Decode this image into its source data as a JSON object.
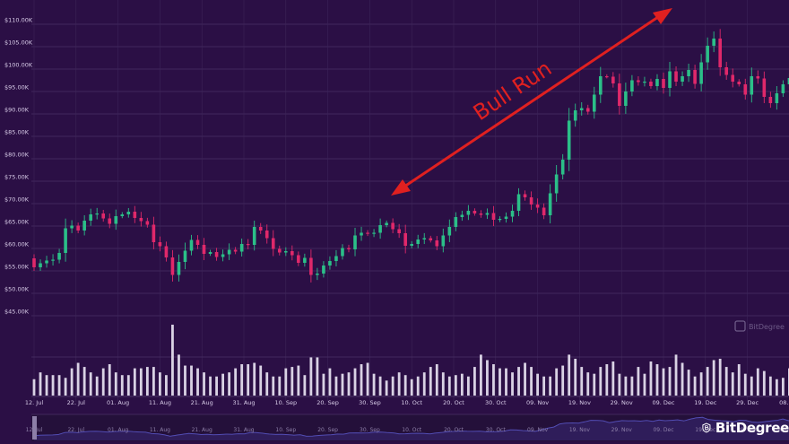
{
  "chart_data": {
    "type": "candlestick",
    "title": "",
    "annotation": "Bull Run",
    "ylim": [
      44000,
      112000
    ],
    "y_ticks": [
      "$45.00K",
      "$50.00K",
      "$55.00K",
      "$60.00K",
      "$65.00K",
      "$70.00K",
      "$75.00K",
      "$80.00K",
      "$85.00K",
      "$90.00K",
      "$95.00K",
      "$100.00K",
      "$105.00K",
      "$110.00K"
    ],
    "y_tick_values": [
      45000,
      50000,
      55000,
      60000,
      65000,
      70000,
      75000,
      80000,
      85000,
      90000,
      95000,
      100000,
      105000,
      110000
    ],
    "x_ticks": [
      "12. Jul",
      "22. Jul",
      "01. Aug",
      "11. Aug",
      "21. Aug",
      "31. Aug",
      "10. Sep",
      "20. Sep",
      "30. Sep",
      "10. Oct",
      "20. Oct",
      "30. Oct",
      "09. Nov",
      "19. Nov",
      "29. Nov",
      "09. Dec",
      "19. Dec",
      "29. Dec",
      "08. Jan"
    ],
    "x_tick_days": [
      0,
      10,
      20,
      30,
      40,
      50,
      60,
      70,
      80,
      90,
      100,
      110,
      120,
      130,
      140,
      150,
      160,
      170,
      180
    ],
    "start_date": "2024-07-10",
    "close": [
      55800,
      56700,
      57300,
      57500,
      59000,
      64500,
      65100,
      64000,
      66200,
      67600,
      67800,
      66700,
      65500,
      67200,
      67600,
      68200,
      66800,
      66100,
      65300,
      61400,
      60500,
      58000,
      54100,
      57000,
      59500,
      61900,
      60800,
      58800,
      59200,
      58100,
      58700,
      59700,
      59300,
      61000,
      60800,
      64800,
      64000,
      62300,
      59900,
      59100,
      59400,
      58500,
      56800,
      57900,
      54100,
      54400,
      56200,
      57200,
      58300,
      60100,
      59800,
      62900,
      63500,
      63300,
      63500,
      65200,
      65700,
      64300,
      63400,
      60600,
      61000,
      62000,
      62300,
      61800,
      60500,
      62900,
      64800,
      67000,
      67500,
      68400,
      67800,
      67500,
      67900,
      66400,
      66600,
      67100,
      68400,
      72100,
      71400,
      69800,
      69100,
      67400,
      72300,
      76500,
      79800,
      88500,
      90800,
      91300,
      90500,
      94300,
      98400,
      98300,
      96800,
      91800,
      95000,
      97500,
      97100,
      97200,
      96200,
      97800,
      95800,
      99500,
      97200,
      98400,
      99800,
      96700,
      101500,
      105200,
      106800,
      100400,
      98700,
      97200,
      96600,
      94300,
      98400,
      97900,
      93800,
      92400,
      94600,
      96600,
      98000,
      102000,
      97000
    ],
    "volume": [
      12,
      17,
      15,
      15,
      15,
      13,
      20,
      24,
      21,
      17,
      14,
      20,
      23,
      17,
      15,
      15,
      20,
      20,
      21,
      21,
      17,
      15,
      52,
      30,
      22,
      22,
      20,
      17,
      14,
      14,
      16,
      17,
      20,
      23,
      23,
      24,
      22,
      17,
      14,
      14,
      20,
      21,
      22,
      15,
      28,
      28,
      16,
      20,
      14,
      16,
      17,
      20,
      23,
      24,
      16,
      14,
      11,
      14,
      17,
      15,
      12,
      14,
      17,
      21,
      23,
      17,
      14,
      15,
      16,
      14,
      21,
      30,
      26,
      23,
      20,
      20,
      17,
      21,
      24,
      21,
      16,
      14,
      14,
      20,
      22,
      30,
      27,
      21,
      17,
      16,
      21,
      23,
      25,
      16,
      14,
      14,
      21,
      16,
      25,
      23,
      20,
      21,
      30,
      24,
      19,
      14,
      17,
      21,
      26,
      27,
      21,
      17,
      23,
      16,
      14,
      20,
      18,
      14,
      12,
      13,
      20,
      17,
      16
    ]
  },
  "watermark_label": "BitDegree",
  "brand_label": "BitDegree"
}
